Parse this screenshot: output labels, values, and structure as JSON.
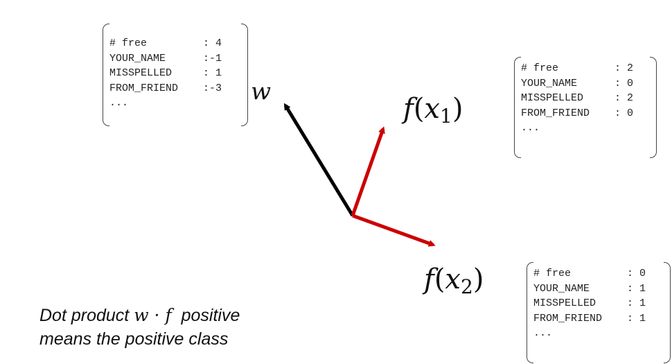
{
  "vectors": {
    "w": {
      "label": "w",
      "rows": [
        {
          "key": "# free",
          "value": ": 4"
        },
        {
          "key": "YOUR_NAME",
          "value": ":-1"
        },
        {
          "key": "MISSPELLED",
          "value": ": 1"
        },
        {
          "key": "FROM_FRIEND",
          "value": ":-3"
        },
        {
          "key": "...",
          "value": ""
        }
      ],
      "color": "#000000"
    },
    "f1": {
      "label_fn": "f",
      "label_var": "x",
      "label_sub": "1",
      "rows": [
        {
          "key": "# free",
          "value": ": 2"
        },
        {
          "key": "YOUR_NAME",
          "value": ": 0"
        },
        {
          "key": "MISSPELLED",
          "value": ": 2"
        },
        {
          "key": "FROM_FRIEND",
          "value": ": 0"
        },
        {
          "key": "...",
          "value": ""
        }
      ],
      "color": "#cc0000"
    },
    "f2": {
      "label_fn": "f",
      "label_var": "x",
      "label_sub": "2",
      "rows": [
        {
          "key": "# free",
          "value": ": 0"
        },
        {
          "key": "YOUR_NAME",
          "value": ": 1"
        },
        {
          "key": "MISSPELLED",
          "value": ": 1"
        },
        {
          "key": "FROM_FRIEND",
          "value": ": 1"
        },
        {
          "key": "...",
          "value": ""
        }
      ],
      "color": "#cc0000"
    }
  },
  "caption": {
    "line1_prefix": "Dot product ",
    "math_w": "w",
    "math_dot": " · ",
    "math_f": "f",
    "line1_suffix": "  positive",
    "line2": "means the positive class"
  }
}
